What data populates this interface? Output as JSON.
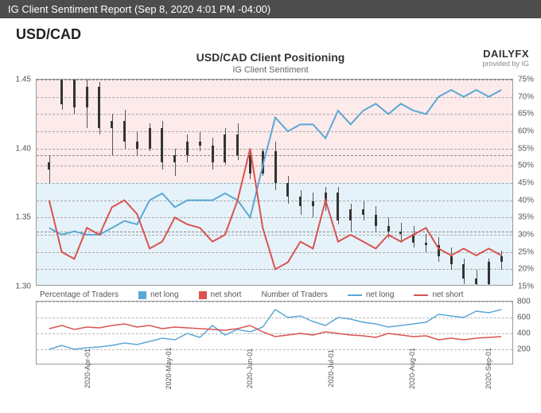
{
  "header": {
    "text": "IG Client Sentiment Report (Sep 8, 2020 4:01 PM -04:00)"
  },
  "pair": {
    "symbol": "USD/CAD"
  },
  "brand": {
    "main": "DAILYFX",
    "sub": "provided by IG"
  },
  "main_chart": {
    "title": "USD/CAD Client Positioning",
    "subtitle": "IG Client Sentiment",
    "left_axis": {
      "min": 1.3,
      "max": 1.45,
      "step": 0.05,
      "ticks": [
        "1.30",
        "1.35",
        "1.40",
        "1.45"
      ]
    },
    "right_axis": {
      "min": 15,
      "max": 75,
      "step": 5,
      "ticks": [
        "15%",
        "20%",
        "25%",
        "30%",
        "35%",
        "40%",
        "45%",
        "50%",
        "55%",
        "60%",
        "65%",
        "70%",
        "75%"
      ]
    },
    "dashed_refs_left": [
      1.34,
      1.395,
      1.45
    ],
    "bg_top_color": "#fdeaea",
    "bg_bottom_color": "#e6f2f9",
    "bg_split_pct": 50,
    "grid_color": "#aaaaaa",
    "colors": {
      "long": "#5aa8d6",
      "short": "#d9534f",
      "candle": "#333333"
    },
    "candles": [
      {
        "o": 1.385,
        "h": 1.395,
        "l": 1.375,
        "c": 1.39
      },
      {
        "o": 1.432,
        "h": 1.462,
        "l": 1.428,
        "c": 1.455
      },
      {
        "o": 1.455,
        "h": 1.458,
        "l": 1.425,
        "c": 1.43
      },
      {
        "o": 1.43,
        "h": 1.45,
        "l": 1.415,
        "c": 1.445
      },
      {
        "o": 1.445,
        "h": 1.448,
        "l": 1.41,
        "c": 1.415
      },
      {
        "o": 1.415,
        "h": 1.425,
        "l": 1.395,
        "c": 1.42
      },
      {
        "o": 1.42,
        "h": 1.428,
        "l": 1.4,
        "c": 1.405
      },
      {
        "o": 1.405,
        "h": 1.412,
        "l": 1.395,
        "c": 1.4
      },
      {
        "o": 1.4,
        "h": 1.418,
        "l": 1.398,
        "c": 1.415
      },
      {
        "o": 1.415,
        "h": 1.42,
        "l": 1.385,
        "c": 1.39
      },
      {
        "o": 1.39,
        "h": 1.4,
        "l": 1.38,
        "c": 1.395
      },
      {
        "o": 1.395,
        "h": 1.41,
        "l": 1.39,
        "c": 1.405
      },
      {
        "o": 1.405,
        "h": 1.412,
        "l": 1.398,
        "c": 1.402
      },
      {
        "o": 1.402,
        "h": 1.408,
        "l": 1.385,
        "c": 1.39
      },
      {
        "o": 1.39,
        "h": 1.415,
        "l": 1.388,
        "c": 1.41
      },
      {
        "o": 1.41,
        "h": 1.418,
        "l": 1.392,
        "c": 1.395
      },
      {
        "o": 1.395,
        "h": 1.4,
        "l": 1.378,
        "c": 1.382
      },
      {
        "o": 1.382,
        "h": 1.4,
        "l": 1.38,
        "c": 1.398
      },
      {
        "o": 1.398,
        "h": 1.405,
        "l": 1.37,
        "c": 1.375
      },
      {
        "o": 1.375,
        "h": 1.38,
        "l": 1.36,
        "c": 1.365
      },
      {
        "o": 1.365,
        "h": 1.37,
        "l": 1.352,
        "c": 1.358
      },
      {
        "o": 1.358,
        "h": 1.368,
        "l": 1.35,
        "c": 1.362
      },
      {
        "o": 1.362,
        "h": 1.372,
        "l": 1.355,
        "c": 1.368
      },
      {
        "o": 1.368,
        "h": 1.372,
        "l": 1.345,
        "c": 1.348
      },
      {
        "o": 1.348,
        "h": 1.36,
        "l": 1.34,
        "c": 1.356
      },
      {
        "o": 1.356,
        "h": 1.362,
        "l": 1.348,
        "c": 1.352
      },
      {
        "o": 1.352,
        "h": 1.358,
        "l": 1.34,
        "c": 1.344
      },
      {
        "o": 1.344,
        "h": 1.35,
        "l": 1.335,
        "c": 1.34
      },
      {
        "o": 1.34,
        "h": 1.346,
        "l": 1.332,
        "c": 1.338
      },
      {
        "o": 1.338,
        "h": 1.344,
        "l": 1.328,
        "c": 1.332
      },
      {
        "o": 1.332,
        "h": 1.338,
        "l": 1.325,
        "c": 1.33
      },
      {
        "o": 1.33,
        "h": 1.336,
        "l": 1.318,
        "c": 1.322
      },
      {
        "o": 1.322,
        "h": 1.328,
        "l": 1.312,
        "c": 1.316
      },
      {
        "o": 1.316,
        "h": 1.32,
        "l": 1.302,
        "c": 1.306
      },
      {
        "o": 1.306,
        "h": 1.312,
        "l": 1.298,
        "c": 1.302
      },
      {
        "o": 1.302,
        "h": 1.32,
        "l": 1.3,
        "c": 1.318
      },
      {
        "o": 1.318,
        "h": 1.326,
        "l": 1.312,
        "c": 1.322
      }
    ],
    "long_series": [
      32,
      30,
      31,
      30,
      30,
      32,
      34,
      33,
      40,
      42,
      38,
      40,
      40,
      40,
      42,
      40,
      35,
      50,
      64,
      60,
      62,
      62,
      58,
      66,
      62,
      66,
      68,
      65,
      68,
      66,
      65,
      70,
      72,
      70,
      72,
      70,
      72
    ],
    "short_series": [
      40,
      25,
      23,
      32,
      30,
      38,
      40,
      36,
      26,
      28,
      35,
      33,
      32,
      28,
      30,
      40,
      55,
      32,
      20,
      22,
      28,
      26,
      40,
      28,
      30,
      28,
      26,
      30,
      28,
      30,
      32,
      26,
      24,
      26,
      24,
      26,
      24
    ]
  },
  "x_axis": {
    "labels": [
      "2020-Apr-01",
      "2020-May-01",
      "2020-Jun-01",
      "2020-Jul-01",
      "2020-Aug-01",
      "2020-Sep-01"
    ],
    "positions_pct": [
      10,
      27,
      44,
      61,
      78,
      94
    ]
  },
  "legend": {
    "left_title": "Percentage of Traders",
    "left_items": [
      {
        "label": "net long",
        "type": "sq",
        "color": "#5aa8d6"
      },
      {
        "label": "net short",
        "type": "sq",
        "color": "#d9534f"
      }
    ],
    "right_title": "Number of Traders",
    "right_items": [
      {
        "label": "net long",
        "type": "line",
        "color": "#5aa8d6"
      },
      {
        "label": "net short",
        "type": "line",
        "color": "#d9534f"
      }
    ]
  },
  "sub_chart": {
    "y_min": 0,
    "y_max": 800,
    "y_step": 200,
    "ticks": [
      "200",
      "400",
      "600",
      "800"
    ],
    "grid_color": "#bbbbbb",
    "long_series": [
      200,
      250,
      200,
      220,
      230,
      250,
      280,
      260,
      300,
      340,
      320,
      400,
      350,
      500,
      380,
      450,
      420,
      480,
      700,
      600,
      620,
      550,
      500,
      600,
      580,
      540,
      520,
      480,
      500,
      520,
      540,
      640,
      620,
      600,
      680,
      660,
      700
    ],
    "short_series": [
      460,
      500,
      450,
      480,
      470,
      500,
      520,
      480,
      500,
      460,
      480,
      470,
      460,
      450,
      440,
      460,
      500,
      420,
      360,
      380,
      400,
      380,
      420,
      400,
      380,
      370,
      350,
      400,
      380,
      360,
      370,
      320,
      340,
      320,
      340,
      350,
      360
    ]
  }
}
